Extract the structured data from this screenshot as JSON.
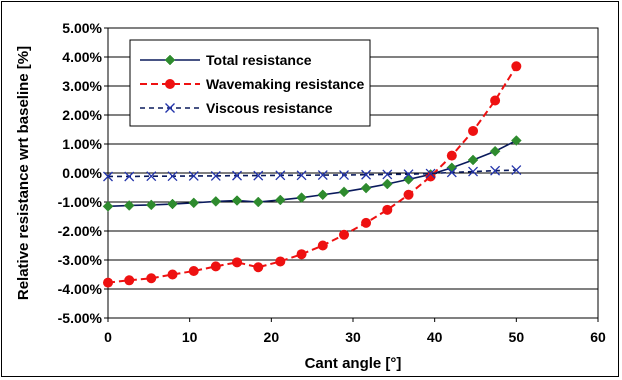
{
  "chart_data": {
    "type": "line",
    "title": "",
    "xlabel": "Cant angle [°]",
    "ylabel": "Relative resistance wrt baseline [%]",
    "xlim": [
      0,
      60
    ],
    "ylim": [
      -5,
      5
    ],
    "x_ticks": [
      "0",
      "10",
      "20",
      "30",
      "40",
      "50",
      "60"
    ],
    "y_ticks": [
      "5.00%",
      "4.00%",
      "3.00%",
      "2.00%",
      "1.00%",
      "0.00%",
      "-1.00%",
      "-2.00%",
      "-3.00%",
      "-4.00%",
      "-5.00%"
    ],
    "grid": "horizontal",
    "legend_position": "top-left",
    "series": [
      {
        "name": "Total resistance",
        "color": "#0a1a5c",
        "marker_color": "#2e8b2e",
        "marker": "diamond",
        "line": "solid",
        "x": [
          0,
          2.6,
          5.3,
          7.9,
          10.5,
          13.2,
          15.8,
          18.4,
          21.1,
          23.7,
          26.3,
          28.9,
          31.6,
          34.2,
          36.8,
          39.5,
          42.1,
          44.7,
          47.4,
          50
        ],
        "y": [
          -1.15,
          -1.12,
          -1.1,
          -1.07,
          -1.03,
          -0.98,
          -0.95,
          -1.0,
          -0.93,
          -0.85,
          -0.75,
          -0.65,
          -0.52,
          -0.38,
          -0.22,
          -0.05,
          0.18,
          0.45,
          0.75,
          1.12
        ]
      },
      {
        "name": "Wavemaking resistance",
        "color": "#ee1111",
        "marker_color": "#ee1111",
        "marker": "circle",
        "line": "dashed",
        "x": [
          0,
          2.6,
          5.3,
          7.9,
          10.5,
          13.2,
          15.8,
          18.4,
          21.1,
          23.7,
          26.3,
          28.9,
          31.6,
          34.2,
          36.8,
          39.5,
          42.1,
          44.7,
          47.4,
          50
        ],
        "y": [
          -3.78,
          -3.7,
          -3.63,
          -3.5,
          -3.38,
          -3.22,
          -3.08,
          -3.25,
          -3.05,
          -2.8,
          -2.5,
          -2.13,
          -1.72,
          -1.27,
          -0.75,
          -0.12,
          0.6,
          1.45,
          2.5,
          3.68
        ]
      },
      {
        "name": "Viscous resistance",
        "color": "#0a1a5c",
        "marker_color": "#2233aa",
        "marker": "x",
        "line": "dashed",
        "x": [
          0,
          2.6,
          5.3,
          7.9,
          10.5,
          13.2,
          15.8,
          18.4,
          21.1,
          23.7,
          26.3,
          28.9,
          31.6,
          34.2,
          36.8,
          39.5,
          42.1,
          44.7,
          47.4,
          50
        ],
        "y": [
          -0.12,
          -0.12,
          -0.11,
          -0.11,
          -0.1,
          -0.1,
          -0.09,
          -0.09,
          -0.08,
          -0.08,
          -0.07,
          -0.07,
          -0.06,
          -0.05,
          -0.04,
          -0.02,
          0.02,
          0.05,
          0.08,
          0.1
        ]
      }
    ]
  }
}
